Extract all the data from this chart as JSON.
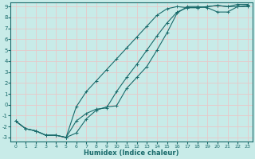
{
  "xlabel": "Humidex (Indice chaleur)",
  "xlim": [
    0,
    23
  ],
  "ylim": [
    -3,
    9
  ],
  "xticks": [
    0,
    1,
    2,
    3,
    4,
    5,
    6,
    7,
    8,
    9,
    10,
    11,
    12,
    13,
    14,
    15,
    16,
    17,
    18,
    19,
    20,
    21,
    22,
    23
  ],
  "yticks": [
    -3,
    -2,
    -1,
    0,
    1,
    2,
    3,
    4,
    5,
    6,
    7,
    8,
    9
  ],
  "bg_color": "#c8ebe8",
  "line_color": "#1a6b6b",
  "grid_color": "#e8c8c8",
  "line1_x": [
    0,
    1,
    2,
    3,
    4,
    5,
    6,
    7,
    8,
    9,
    10,
    11,
    12,
    13,
    14,
    15,
    16,
    17,
    18,
    19,
    20,
    21,
    22,
    23
  ],
  "line1_y": [
    -1.5,
    -2.2,
    -2.4,
    -2.8,
    -2.8,
    -3.0,
    -2.6,
    -1.3,
    -0.5,
    -0.2,
    -0.1,
    1.5,
    2.5,
    3.5,
    5.0,
    6.6,
    8.4,
    9.0,
    9.0,
    8.9,
    8.5,
    8.5,
    9.0,
    9.0
  ],
  "line2_x": [
    0,
    1,
    2,
    3,
    4,
    5,
    6,
    7,
    8,
    9,
    10,
    11,
    12,
    13,
    14,
    15,
    16,
    17,
    18,
    19,
    20,
    21,
    22,
    23
  ],
  "line2_y": [
    -1.5,
    -2.2,
    -2.4,
    -2.8,
    -2.8,
    -3.0,
    -0.2,
    1.2,
    2.2,
    3.2,
    4.2,
    5.2,
    6.2,
    7.2,
    8.2,
    8.8,
    9.0,
    8.9,
    8.9,
    9.0,
    9.1,
    9.0,
    9.2,
    9.2
  ],
  "line3_x": [
    0,
    1,
    2,
    3,
    4,
    5,
    6,
    7,
    8,
    9,
    10,
    11,
    12,
    13,
    14,
    15,
    16,
    17,
    18,
    19,
    20,
    21,
    22,
    23
  ],
  "line3_y": [
    -1.5,
    -2.2,
    -2.4,
    -2.8,
    -2.8,
    -3.0,
    -1.5,
    -0.8,
    -0.4,
    -0.3,
    1.2,
    2.5,
    3.7,
    5.0,
    6.3,
    7.5,
    8.5,
    8.9,
    8.9,
    9.0,
    9.1,
    9.0,
    9.0,
    9.1
  ]
}
